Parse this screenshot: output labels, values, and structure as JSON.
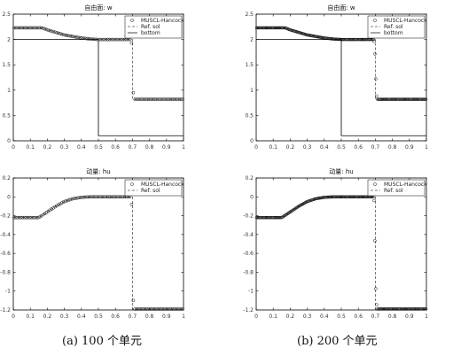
{
  "captions": [
    "(a) 100 个单元",
    "(b) 200 个单元"
  ],
  "chart_data": [
    {
      "type": "scatter",
      "title": "自由面: w",
      "panel": "a",
      "n_markers": 100,
      "xlim": [
        0,
        1
      ],
      "ylim": [
        0,
        2.5
      ],
      "xticks": [
        "0",
        "0.1",
        "0.2",
        "0.3",
        "0.4",
        "0.5",
        "0.6",
        "0.7",
        "0.8",
        "0.9",
        "1"
      ],
      "yticks": [
        "0",
        "0.5",
        "1",
        "1.5",
        "2",
        "2.5"
      ],
      "legend": {
        "position": "top-right",
        "entries": [
          "MUSCL-Hancock",
          "Ref. sol",
          "bottom"
        ]
      },
      "series": [
        {
          "name": "MUSCL-Hancock",
          "style": "circles",
          "x": [
            0,
            0.17,
            0.2,
            0.3,
            0.4,
            0.45,
            0.5,
            0.69,
            0.695,
            0.7,
            0.705,
            0.71,
            1
          ],
          "y": [
            2.23,
            2.23,
            2.19,
            2.09,
            2.03,
            2.01,
            2.0,
            2.0,
            1.93,
            1.47,
            0.95,
            0.82,
            0.82
          ]
        },
        {
          "name": "Ref. sol",
          "style": "dashed",
          "x": [
            0,
            0.17,
            0.2,
            0.3,
            0.4,
            0.45,
            0.5,
            0.7,
            0.7,
            1
          ],
          "y": [
            2.23,
            2.23,
            2.19,
            2.09,
            2.03,
            2.01,
            2.0,
            2.0,
            0.82,
            0.82
          ]
        },
        {
          "name": "bottom",
          "style": "solid",
          "x": [
            0,
            0.5,
            0.5,
            1
          ],
          "y": [
            2.0,
            2.0,
            0.1,
            0.1
          ]
        }
      ]
    },
    {
      "type": "scatter",
      "title": "动量: hu",
      "panel": "a",
      "n_markers": 100,
      "xlim": [
        0,
        1
      ],
      "ylim": [
        -1.2,
        0.2
      ],
      "xticks": [
        "0",
        "0.1",
        "0.2",
        "0.3",
        "0.4",
        "0.5",
        "0.6",
        "0.7",
        "0.8",
        "0.9",
        "1"
      ],
      "yticks": [
        "0.2",
        "0",
        "-0.2",
        "-0.4",
        "-0.6",
        "-0.8",
        "-1",
        "-1.2"
      ],
      "legend": {
        "position": "top-right",
        "entries": [
          "MUSCL-Hancock",
          "Ref. sol"
        ]
      },
      "series": [
        {
          "name": "MUSCL-Hancock",
          "style": "circles",
          "x": [
            0,
            0.15,
            0.2,
            0.25,
            0.3,
            0.35,
            0.4,
            0.45,
            0.5,
            0.69,
            0.695,
            0.7,
            0.705,
            0.71,
            1
          ],
          "y": [
            -0.22,
            -0.22,
            -0.16,
            -0.1,
            -0.05,
            -0.02,
            -0.005,
            0,
            0,
            0,
            -0.08,
            -0.85,
            -1.1,
            -1.19,
            -1.19
          ]
        },
        {
          "name": "Ref. sol",
          "style": "dashed",
          "x": [
            0,
            0.15,
            0.2,
            0.25,
            0.3,
            0.35,
            0.4,
            0.45,
            0.5,
            0.7,
            0.7,
            1
          ],
          "y": [
            -0.22,
            -0.22,
            -0.16,
            -0.1,
            -0.05,
            -0.02,
            -0.005,
            0,
            0,
            0,
            -1.19,
            -1.19
          ]
        }
      ]
    },
    {
      "type": "scatter",
      "title": "自由面: w",
      "panel": "b",
      "n_markers": 200,
      "xlim": [
        0,
        1
      ],
      "ylim": [
        0,
        2.5
      ],
      "xticks": [
        "0",
        "0.1",
        "0.2",
        "0.3",
        "0.4",
        "0.5",
        "0.6",
        "0.7",
        "0.8",
        "0.9",
        "1"
      ],
      "yticks": [
        "0",
        "0.5",
        "1",
        "1.5",
        "2",
        "2.5"
      ],
      "legend": {
        "position": "top-right",
        "entries": [
          "MUSCL-Hancock",
          "Ref. sol",
          "bottom"
        ]
      },
      "series": [
        {
          "name": "MUSCL-Hancock",
          "style": "circles",
          "x": [
            0,
            0.17,
            0.2,
            0.3,
            0.4,
            0.45,
            0.5,
            0.69,
            0.695,
            0.7,
            0.705,
            0.71,
            1
          ],
          "y": [
            2.23,
            2.23,
            2.19,
            2.09,
            2.03,
            2.01,
            2.0,
            2.0,
            1.93,
            1.5,
            0.95,
            0.82,
            0.82
          ]
        },
        {
          "name": "Ref. sol",
          "style": "dashed",
          "x": [
            0,
            0.17,
            0.2,
            0.3,
            0.4,
            0.45,
            0.5,
            0.7,
            0.7,
            1
          ],
          "y": [
            2.23,
            2.23,
            2.19,
            2.09,
            2.03,
            2.01,
            2.0,
            2.0,
            0.82,
            0.82
          ]
        },
        {
          "name": "bottom",
          "style": "solid",
          "x": [
            0,
            0.5,
            0.5,
            1
          ],
          "y": [
            2.0,
            2.0,
            0.1,
            0.1
          ]
        }
      ]
    },
    {
      "type": "scatter",
      "title": "动量: hu",
      "panel": "b",
      "n_markers": 200,
      "xlim": [
        0,
        1
      ],
      "ylim": [
        -1.2,
        0.2
      ],
      "xticks": [
        "0",
        "0.1",
        "0.2",
        "0.3",
        "0.4",
        "0.5",
        "0.6",
        "0.7",
        "0.8",
        "0.9",
        "1"
      ],
      "yticks": [
        "0.2",
        "0",
        "-0.2",
        "-0.4",
        "-0.6",
        "-0.8",
        "-1",
        "-1.2"
      ],
      "legend": {
        "position": "top-right",
        "entries": [
          "MUSCL-Hancock",
          "Ref. sol"
        ]
      },
      "series": [
        {
          "name": "MUSCL-Hancock",
          "style": "circles",
          "x": [
            0,
            0.15,
            0.2,
            0.25,
            0.3,
            0.35,
            0.4,
            0.45,
            0.5,
            0.69,
            0.695,
            0.7,
            0.705,
            0.71,
            1
          ],
          "y": [
            -0.22,
            -0.22,
            -0.16,
            -0.1,
            -0.05,
            -0.02,
            -0.005,
            0,
            0,
            0,
            -0.08,
            -0.85,
            -1.1,
            -1.19,
            -1.19
          ]
        },
        {
          "name": "Ref. sol",
          "style": "dashed",
          "x": [
            0,
            0.15,
            0.2,
            0.25,
            0.3,
            0.35,
            0.4,
            0.45,
            0.5,
            0.7,
            0.7,
            1
          ],
          "y": [
            -0.22,
            -0.22,
            -0.16,
            -0.1,
            -0.05,
            -0.02,
            -0.005,
            0,
            0,
            0,
            -1.19,
            -1.19
          ]
        }
      ]
    }
  ]
}
